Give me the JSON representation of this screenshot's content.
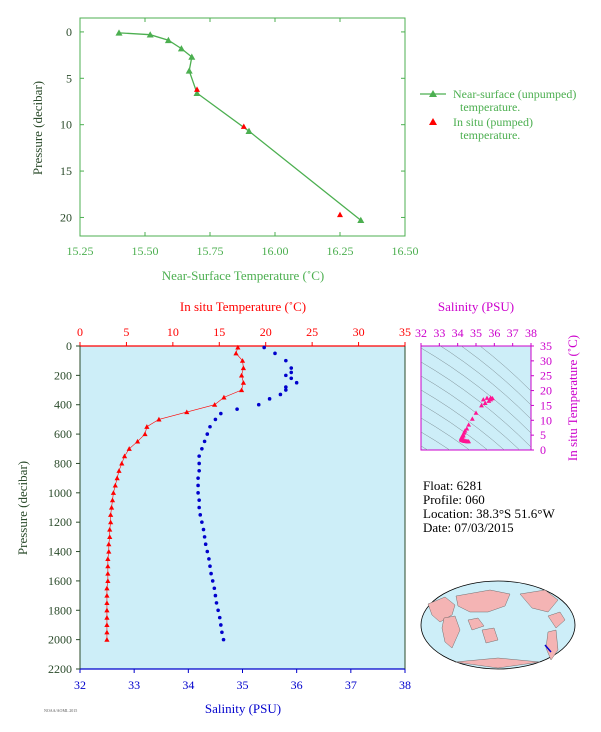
{
  "colors": {
    "green": "#4caf50",
    "red": "#ff0000",
    "blue": "#0000cc",
    "magenta": "#cc00cc",
    "plot_bg": "#cdeef8",
    "axis_text": "#2a4a2a"
  },
  "info": {
    "float": "Float:  6281",
    "profile": "Profile:  060",
    "location": "Location:  38.3°S  51.6°W",
    "date": "Date:  07/03/2015"
  },
  "chart_data": [
    {
      "type": "line",
      "xlabel": "Near-Surface Temperature (˚C)",
      "ylabel": "Pressure (decibar)",
      "xlim": [
        15.25,
        16.5
      ],
      "ylim": [
        22,
        -1.5
      ],
      "xticks": [
        "15.25",
        "15.50",
        "15.75",
        "16.00",
        "16.25",
        "16.50"
      ],
      "yticks": [
        "0",
        "5",
        "10",
        "15",
        "20"
      ],
      "legend_position": "right",
      "series": [
        {
          "name": "Near-surface (unpumped) temperature.",
          "x": [
            15.4,
            15.52,
            15.59,
            15.64,
            15.68,
            15.67,
            15.7,
            15.9,
            16.33
          ],
          "y": [
            0.1,
            0.3,
            0.9,
            1.8,
            2.7,
            4.2,
            6.6,
            10.7,
            20.3
          ]
        },
        {
          "name": "In situ (pumped) temperature.",
          "x": [
            15.7,
            15.88,
            16.25
          ],
          "y": [
            6.2,
            10.2,
            19.7
          ]
        }
      ]
    },
    {
      "type": "scatter",
      "xlabel_top": "In situ Temperature (˚C)",
      "xlabel_bottom": "Salinity (PSU)",
      "ylabel": "Pressure (decibar)",
      "temp_lim": [
        0,
        35
      ],
      "sal_lim": [
        32,
        38
      ],
      "pres_lim": [
        0,
        2200
      ],
      "temp_ticks": [
        "0",
        "5",
        "10",
        "15",
        "20",
        "25",
        "30",
        "35"
      ],
      "sal_ticks": [
        "32",
        "33",
        "34",
        "35",
        "36",
        "37",
        "38"
      ],
      "pres_ticks": [
        "0",
        "200",
        "400",
        "600",
        "800",
        "1000",
        "1200",
        "1400",
        "1600",
        "1800",
        "2000",
        "2200"
      ],
      "temperature": {
        "pressure": [
          10,
          50,
          100,
          150,
          200,
          250,
          300,
          350,
          400,
          450,
          500,
          550,
          600,
          650,
          700,
          750,
          800,
          850,
          900,
          950,
          1000,
          1050,
          1100,
          1150,
          1200,
          1250,
          1300,
          1350,
          1400,
          1450,
          1500,
          1550,
          1600,
          1650,
          1700,
          1750,
          1800,
          1850,
          1900,
          1950,
          2000
        ],
        "values": [
          17.0,
          16.8,
          17.5,
          17.6,
          17.4,
          17.6,
          17.4,
          15.5,
          14.5,
          11.5,
          8.5,
          7.2,
          7.0,
          6.2,
          5.3,
          4.8,
          4.5,
          4.2,
          4.0,
          3.8,
          3.6,
          3.5,
          3.4,
          3.3,
          3.3,
          3.2,
          3.2,
          3.1,
          3.1,
          3.0,
          3.0,
          3.0,
          3.0,
          2.9,
          2.9,
          2.9,
          2.9,
          2.9,
          2.9,
          2.9,
          2.9
        ]
      },
      "salinity": {
        "pressure": [
          10,
          50,
          100,
          150,
          180,
          200,
          220,
          250,
          280,
          300,
          330,
          360,
          400,
          430,
          460,
          500,
          550,
          600,
          650,
          700,
          750,
          800,
          850,
          900,
          950,
          1000,
          1050,
          1100,
          1150,
          1200,
          1250,
          1300,
          1350,
          1400,
          1450,
          1500,
          1550,
          1600,
          1650,
          1700,
          1750,
          1800,
          1850,
          1900,
          1950,
          2000
        ],
        "values": [
          35.4,
          35.6,
          35.8,
          35.9,
          35.9,
          35.8,
          35.9,
          36.0,
          35.8,
          35.8,
          35.7,
          35.5,
          35.3,
          34.9,
          34.6,
          34.5,
          34.4,
          34.35,
          34.3,
          34.25,
          34.2,
          34.2,
          34.2,
          34.18,
          34.18,
          34.18,
          34.2,
          34.2,
          34.22,
          34.25,
          34.28,
          34.3,
          34.32,
          34.35,
          34.38,
          34.4,
          34.42,
          34.45,
          34.48,
          34.5,
          34.52,
          34.55,
          34.58,
          34.6,
          34.62,
          34.65
        ]
      }
    },
    {
      "type": "scatter",
      "title": "Salinity (PSU)",
      "ylabel": "In situ Temperature (˚C)",
      "sal_lim": [
        32,
        38
      ],
      "temp_lim": [
        0,
        35
      ],
      "sal_ticks": [
        "32",
        "33",
        "34",
        "35",
        "36",
        "37",
        "38"
      ],
      "temp_ticks": [
        "0",
        "5",
        "10",
        "15",
        "20",
        "25",
        "30",
        "35"
      ],
      "sal": [
        35.4,
        35.6,
        35.8,
        35.9,
        35.8,
        35.7,
        35.5,
        35.3,
        35.0,
        34.8,
        34.6,
        34.5,
        34.4,
        34.35,
        34.3,
        34.3,
        34.25,
        34.2,
        34.2,
        34.2,
        34.22,
        34.25,
        34.3,
        34.35,
        34.4,
        34.45,
        34.5,
        34.55,
        34.6
      ],
      "temp": [
        17.0,
        17.5,
        17.6,
        17.4,
        17.0,
        16.5,
        15.8,
        15.0,
        12.5,
        10.5,
        8.5,
        7.2,
        6.5,
        5.8,
        5.2,
        4.8,
        4.4,
        4.1,
        3.8,
        3.6,
        3.4,
        3.3,
        3.2,
        3.1,
        3.0,
        3.0,
        2.9,
        2.9,
        2.9
      ]
    }
  ]
}
